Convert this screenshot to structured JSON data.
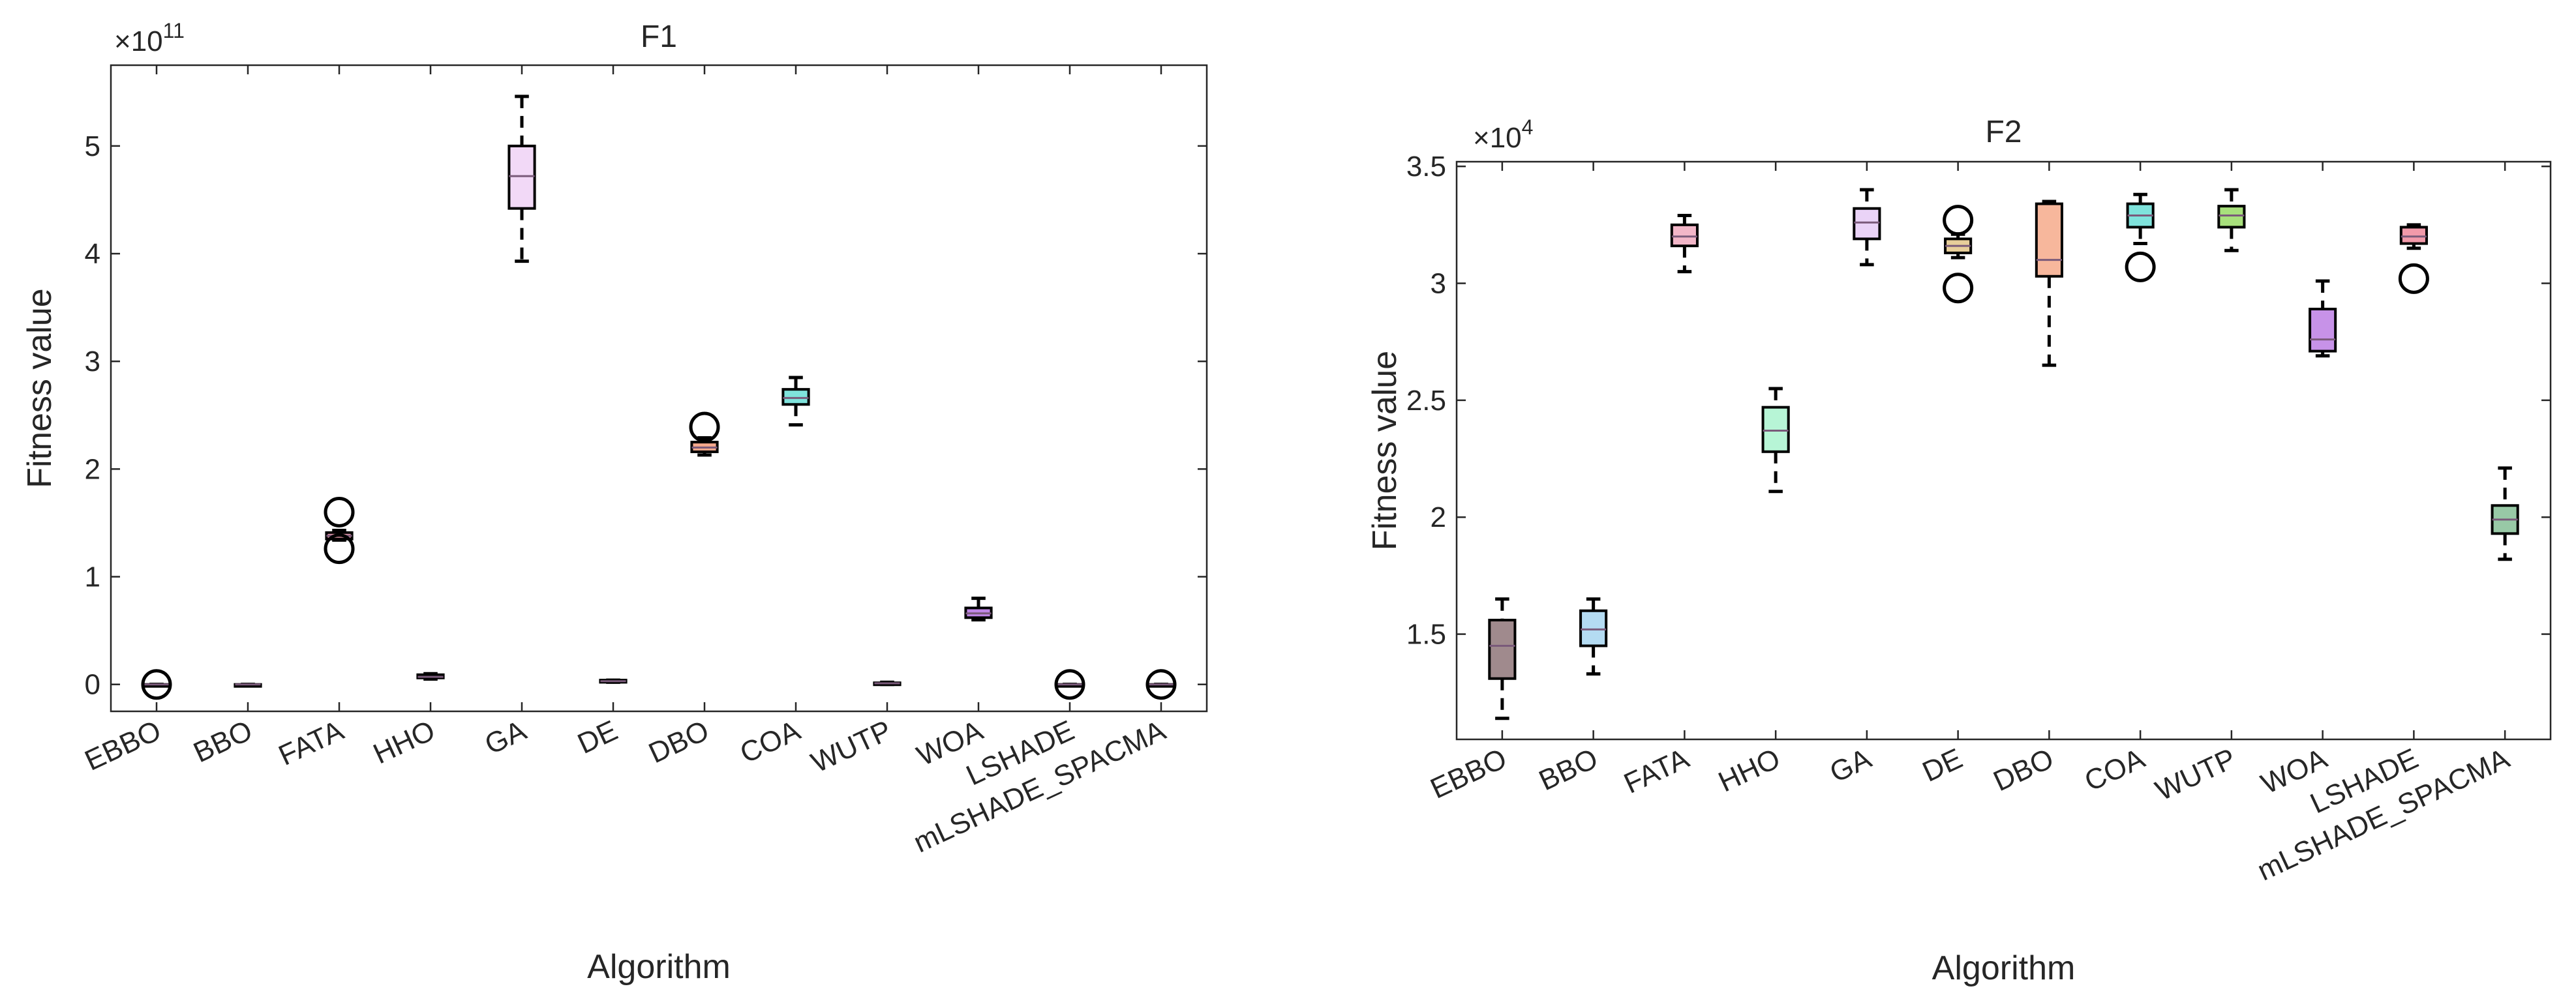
{
  "chart_data": [
    {
      "type": "box",
      "title": "F1",
      "xlabel": "Algorithm",
      "ylabel": "Fitness value",
      "y_exponent": "×10",
      "y_exponent_power": "11",
      "ylim": [
        -0.25,
        5.75
      ],
      "yticks": [
        0,
        1,
        2,
        3,
        4,
        5
      ],
      "ytick_labels": [
        "0",
        "1",
        "2",
        "3",
        "4",
        "5"
      ],
      "categories": [
        "EBBO",
        "BBO",
        "FATA",
        "HHO",
        "GA",
        "DE",
        "DBO",
        "COA",
        "WUTP",
        "WOA",
        "LSHADE",
        "mLSHADE_SPACMA"
      ],
      "boxes": [
        {
          "lw": 0,
          "q1": 0,
          "med": 0,
          "q3": 0,
          "uw": 0,
          "outliers": [
            0
          ],
          "color": "#d9d9d9"
        },
        {
          "lw": 0,
          "q1": 0,
          "med": 0,
          "q3": 0,
          "uw": 0,
          "outliers": [],
          "color": "#d9d9d9"
        },
        {
          "lw": 1.34,
          "q1": 1.35,
          "med": 1.38,
          "q3": 1.41,
          "uw": 1.43,
          "outliers": [
            1.6,
            1.26
          ],
          "color": "#e89aa8"
        },
        {
          "lw": 0.05,
          "q1": 0.06,
          "med": 0.07,
          "q3": 0.09,
          "uw": 0.1,
          "outliers": [],
          "color": "#a7f2c8"
        },
        {
          "lw": 3.93,
          "q1": 4.42,
          "med": 4.72,
          "q3": 5.0,
          "uw": 5.46,
          "outliers": [],
          "color": "#f2d9f7"
        },
        {
          "lw": 0.02,
          "q1": 0.02,
          "med": 0.03,
          "q3": 0.04,
          "uw": 0.04,
          "outliers": [],
          "color": "#f3d3b6"
        },
        {
          "lw": 2.13,
          "q1": 2.16,
          "med": 2.2,
          "q3": 2.25,
          "uw": 2.29,
          "outliers": [
            2.39
          ],
          "color": "#f5a98c"
        },
        {
          "lw": 2.41,
          "q1": 2.6,
          "med": 2.66,
          "q3": 2.74,
          "uw": 2.85,
          "outliers": [],
          "color": "#7fe3dc"
        },
        {
          "lw": 0,
          "q1": 0.005,
          "med": 0.01,
          "q3": 0.015,
          "uw": 0.02,
          "outliers": [],
          "color": "#c4e88c"
        },
        {
          "lw": 0.6,
          "q1": 0.62,
          "med": 0.66,
          "q3": 0.71,
          "uw": 0.8,
          "outliers": [],
          "color": "#bf86e6"
        },
        {
          "lw": 0,
          "q1": 0,
          "med": 0,
          "q3": 0,
          "uw": 0,
          "outliers": [
            0
          ],
          "color": "#f08ca5"
        },
        {
          "lw": 0,
          "q1": 0,
          "med": 0,
          "q3": 0,
          "uw": 0,
          "outliers": [
            0
          ],
          "color": "#8ec49f"
        }
      ],
      "grid": false,
      "legend": "none"
    },
    {
      "type": "box",
      "title": "F2",
      "xlabel": "Algorithm",
      "ylabel": "Fitness value",
      "y_exponent": "×10",
      "y_exponent_power": "4",
      "ylim": [
        1.05,
        3.52
      ],
      "yticks": [
        1.5,
        2,
        2.5,
        3,
        3.5
      ],
      "ytick_labels": [
        "1.5",
        "2",
        "2.5",
        "3",
        "3.5"
      ],
      "categories": [
        "EBBO",
        "BBO",
        "FATA",
        "HHO",
        "GA",
        "DE",
        "DBO",
        "COA",
        "WUTP",
        "WOA",
        "LSHADE",
        "mLSHADE_SPACMA"
      ],
      "boxes": [
        {
          "lw": 1.14,
          "q1": 1.31,
          "med": 1.45,
          "q3": 1.56,
          "uw": 1.65,
          "outliers": [],
          "color": "#a08a8d"
        },
        {
          "lw": 1.33,
          "q1": 1.45,
          "med": 1.52,
          "q3": 1.6,
          "uw": 1.65,
          "outliers": [],
          "color": "#b4dbf2"
        },
        {
          "lw": 3.05,
          "q1": 3.16,
          "med": 3.2,
          "q3": 3.25,
          "uw": 3.29,
          "outliers": [],
          "color": "#f2b6c8"
        },
        {
          "lw": 2.11,
          "q1": 2.28,
          "med": 2.37,
          "q3": 2.47,
          "uw": 2.55,
          "outliers": [],
          "color": "#b7f5d6"
        },
        {
          "lw": 3.08,
          "q1": 3.19,
          "med": 3.26,
          "q3": 3.32,
          "uw": 3.4,
          "outliers": [],
          "color": "#ead3f7"
        },
        {
          "lw": 3.11,
          "q1": 3.13,
          "med": 3.16,
          "q3": 3.19,
          "uw": 3.21,
          "outliers": [
            3.27,
            2.98
          ],
          "color": "#e8cf9a"
        },
        {
          "lw": 2.65,
          "q1": 3.03,
          "med": 3.1,
          "q3": 3.34,
          "uw": 3.35,
          "outliers": [],
          "color": "#f7b79c"
        },
        {
          "lw": 3.17,
          "q1": 3.24,
          "med": 3.29,
          "q3": 3.34,
          "uw": 3.38,
          "outliers": [
            3.07
          ],
          "color": "#7fe3dc"
        },
        {
          "lw": 3.14,
          "q1": 3.24,
          "med": 3.29,
          "q3": 3.33,
          "uw": 3.4,
          "outliers": [],
          "color": "#a8e07c"
        },
        {
          "lw": 2.69,
          "q1": 2.71,
          "med": 2.76,
          "q3": 2.89,
          "uw": 3.01,
          "outliers": [],
          "color": "#c792e8"
        },
        {
          "lw": 3.15,
          "q1": 3.17,
          "med": 3.2,
          "q3": 3.24,
          "uw": 3.25,
          "outliers": [
            3.02
          ],
          "color": "#f29aaa"
        },
        {
          "lw": 1.82,
          "q1": 1.93,
          "med": 1.99,
          "q3": 2.05,
          "uw": 2.21,
          "outliers": [],
          "color": "#98c9a6"
        }
      ],
      "grid": false,
      "legend": "none"
    }
  ]
}
